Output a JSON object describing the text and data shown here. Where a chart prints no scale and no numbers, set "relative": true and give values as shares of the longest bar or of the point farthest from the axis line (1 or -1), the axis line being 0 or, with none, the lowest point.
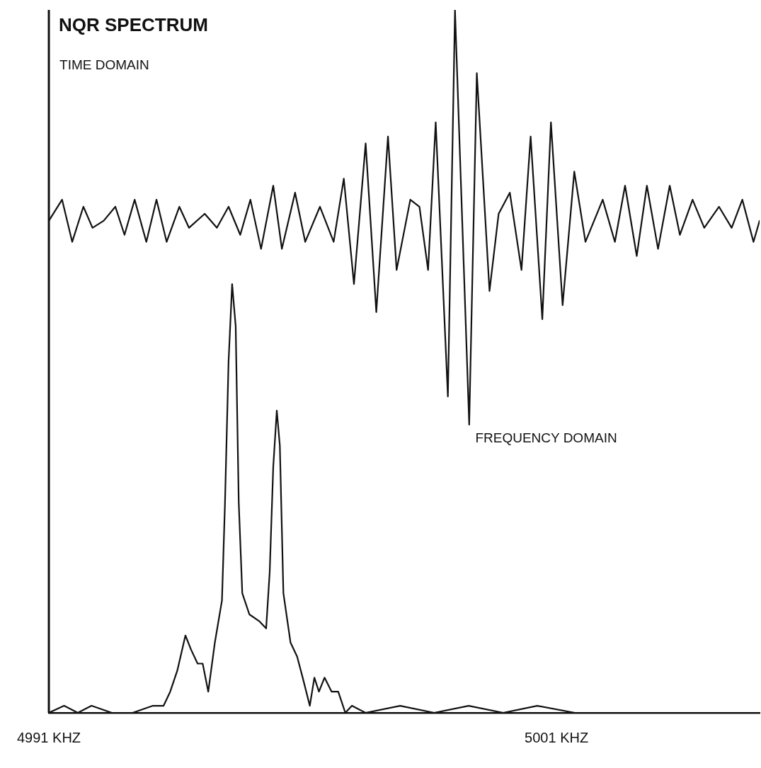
{
  "chart_data": {
    "type": "line",
    "title": "NQR SPECTRUM",
    "relative": true,
    "grid": false,
    "legend": false,
    "marker": "none",
    "line_style": "solid",
    "tick_labels": "x",
    "annotations": [
      "TIME DOMAIN",
      "FREQUENCY DOMAIN"
    ],
    "xlim": [
      4991,
      5005
    ],
    "xticks": [
      {
        "value": 4991,
        "label": "4991 KHZ"
      },
      {
        "value": 5001,
        "label": "5001 KHZ"
      }
    ],
    "series": [
      {
        "color": "#111111",
        "x": [
          4991,
          4991.26,
          4991.46,
          4991.68,
          4991.86,
          4992.08,
          4992.31,
          4992.49,
          4992.69,
          4992.92,
          4993.12,
          4993.32,
          4993.57,
          4993.76,
          4994.07,
          4994.31,
          4994.54,
          4994.77,
          4994.97,
          4995.18,
          4995.42,
          4995.59,
          4995.85,
          4996.05,
          4996.34,
          4996.61,
          4996.81,
          4997.01,
          4997.24,
          4997.45,
          4997.68,
          4997.85,
          4998.12,
          4998.3,
          4998.47,
          4998.62,
          4998.86,
          4999,
          4999.28,
          4999.43,
          4999.68,
          4999.86,
          5000.08,
          5000.31,
          5000.49,
          5000.72,
          5000.89,
          5001.12,
          5001.35,
          5001.57,
          5001.91,
          5002.15,
          5002.35,
          5002.58,
          5002.78,
          5003,
          5003.23,
          5003.43,
          5003.68,
          5003.91,
          5004.2,
          5004.45,
          5004.66,
          5004.88,
          5005
        ],
        "values": [
          0.7,
          0.73,
          0.67,
          0.72,
          0.69,
          0.7,
          0.72,
          0.68,
          0.73,
          0.67,
          0.73,
          0.67,
          0.72,
          0.69,
          0.71,
          0.69,
          0.72,
          0.68,
          0.73,
          0.66,
          0.75,
          0.66,
          0.74,
          0.67,
          0.72,
          0.67,
          0.76,
          0.61,
          0.81,
          0.57,
          0.82,
          0.63,
          0.73,
          0.72,
          0.63,
          0.84,
          0.45,
          1.0,
          0.41,
          0.91,
          0.6,
          0.71,
          0.74,
          0.63,
          0.82,
          0.56,
          0.84,
          0.58,
          0.77,
          0.67,
          0.73,
          0.67,
          0.75,
          0.65,
          0.75,
          0.66,
          0.75,
          0.68,
          0.73,
          0.69,
          0.72,
          0.69,
          0.73,
          0.67,
          0.7
        ]
      },
      {
        "color": "#111111",
        "x": [
          4991,
          4991.3,
          4991.57,
          4991.84,
          4992.24,
          4992.65,
          4993.05,
          4993.26,
          4993.39,
          4993.53,
          4993.69,
          4993.8,
          4993.93,
          4994.03,
          4994.14,
          4994.27,
          4994.41,
          4994.47,
          4994.54,
          4994.61,
          4994.68,
          4994.74,
          4994.81,
          4994.95,
          4995.15,
          4995.28,
          4995.35,
          4995.42,
          4995.49,
          4995.55,
          4995.62,
          4995.76,
          4995.89,
          4996,
          4996.14,
          4996.23,
          4996.32,
          4996.43,
          4996.57,
          4996.7,
          4996.84,
          4996.97,
          4997.24,
          4997.92,
          4998.59,
          4999.27,
          4999.95,
          5000.62,
          5001.36
        ],
        "values": [
          0,
          0.01,
          0,
          0.01,
          0,
          0,
          0.01,
          0.01,
          0.03,
          0.06,
          0.11,
          0.09,
          0.07,
          0.07,
          0.03,
          0.1,
          0.16,
          0.3,
          0.5,
          0.61,
          0.55,
          0.3,
          0.17,
          0.14,
          0.13,
          0.12,
          0.2,
          0.35,
          0.43,
          0.38,
          0.17,
          0.1,
          0.08,
          0.05,
          0.01,
          0.05,
          0.03,
          0.05,
          0.03,
          0.03,
          0,
          0.01,
          0,
          0.01,
          0,
          0.01,
          0,
          0.01,
          0
        ]
      }
    ]
  }
}
